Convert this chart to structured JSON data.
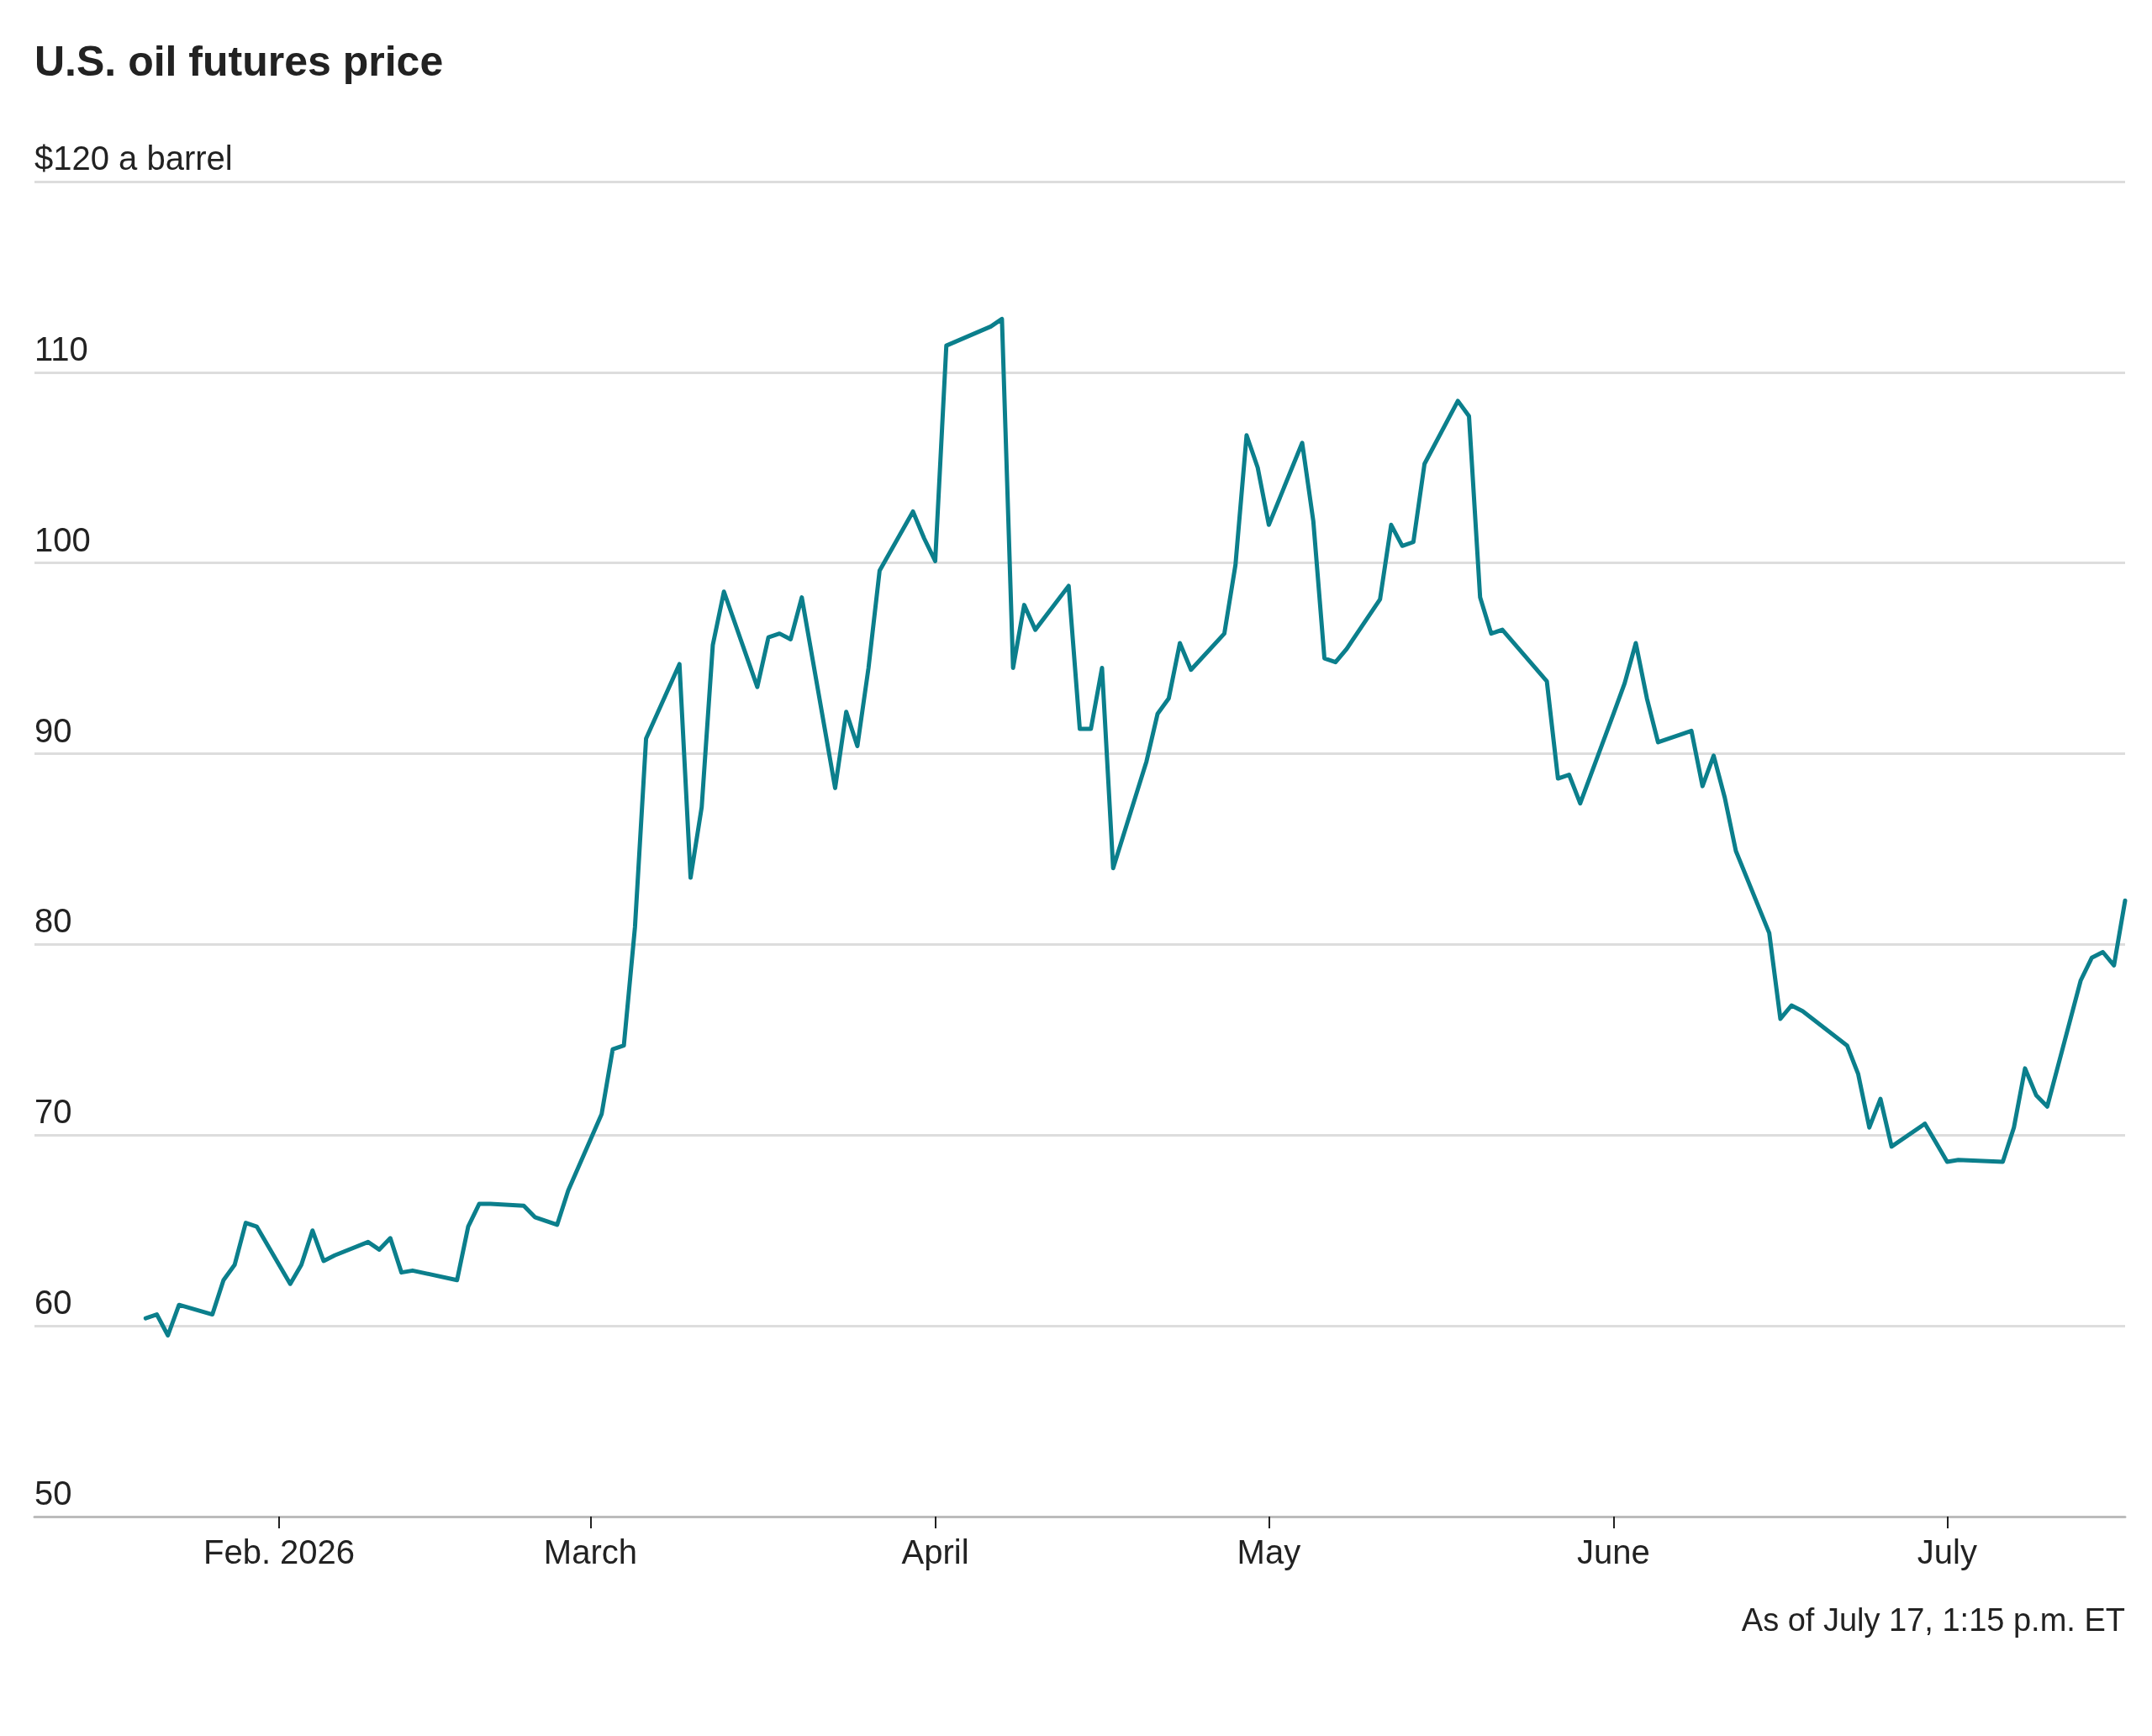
{
  "chart_data": {
    "type": "line",
    "title": "U.S. oil futures price",
    "annotations": [
      "As of July 17, 1:15 p.m. ET"
    ],
    "x": [
      "2026-01-20",
      "2026-01-21",
      "2026-01-22",
      "2026-01-23",
      "2026-01-26",
      "2026-01-27",
      "2026-01-28",
      "2026-01-29",
      "2026-01-30",
      "2026-02-02",
      "2026-02-03",
      "2026-02-04",
      "2026-02-05",
      "2026-02-06",
      "2026-02-09",
      "2026-02-10",
      "2026-02-11",
      "2026-02-12",
      "2026-02-13",
      "2026-02-17",
      "2026-02-18",
      "2026-02-19",
      "2026-02-20",
      "2026-02-23",
      "2026-02-24",
      "2026-02-25",
      "2026-02-26",
      "2026-02-27",
      "2026-03-02",
      "2026-03-03",
      "2026-03-04",
      "2026-03-05",
      "2026-03-06",
      "2026-03-09",
      "2026-03-10",
      "2026-03-11",
      "2026-03-12",
      "2026-03-13",
      "2026-03-16",
      "2026-03-17",
      "2026-03-18",
      "2026-03-19",
      "2026-03-20",
      "2026-03-23",
      "2026-03-24",
      "2026-03-25",
      "2026-03-26",
      "2026-03-27",
      "2026-03-30",
      "2026-03-31",
      "2026-04-01",
      "2026-04-02",
      "2026-04-06",
      "2026-04-07",
      "2026-04-08",
      "2026-04-09",
      "2026-04-10",
      "2026-04-13",
      "2026-04-14",
      "2026-04-15",
      "2026-04-16",
      "2026-04-17",
      "2026-04-20",
      "2026-04-21",
      "2026-04-22",
      "2026-04-23",
      "2026-04-24",
      "2026-04-27",
      "2026-04-28",
      "2026-04-29",
      "2026-04-30",
      "2026-05-01",
      "2026-05-04",
      "2026-05-05",
      "2026-05-06",
      "2026-05-07",
      "2026-05-08",
      "2026-05-11",
      "2026-05-12",
      "2026-05-13",
      "2026-05-14",
      "2026-05-15",
      "2026-05-18",
      "2026-05-19",
      "2026-05-20",
      "2026-05-21",
      "2026-05-22",
      "2026-05-26",
      "2026-05-27",
      "2026-05-28",
      "2026-05-29",
      "2026-06-01",
      "2026-06-02",
      "2026-06-03",
      "2026-06-04",
      "2026-06-05",
      "2026-06-08",
      "2026-06-09",
      "2026-06-10",
      "2026-06-11",
      "2026-06-12",
      "2026-06-15",
      "2026-06-16",
      "2026-06-17",
      "2026-06-18",
      "2026-06-22",
      "2026-06-23",
      "2026-06-24",
      "2026-06-25",
      "2026-06-26",
      "2026-06-29",
      "2026-06-30",
      "2026-07-01",
      "2026-07-02",
      "2026-07-06",
      "2026-07-07",
      "2026-07-08",
      "2026-07-09",
      "2026-07-10",
      "2026-07-13",
      "2026-07-14",
      "2026-07-15",
      "2026-07-16",
      "2026-07-17"
    ],
    "series": [
      {
        "color": "#0b7f8c",
        "values": [
          60.4,
          60.6,
          59.5,
          61.1,
          60.6,
          62.4,
          63.2,
          65.4,
          65.2,
          62.2,
          63.2,
          65.0,
          63.4,
          63.7,
          64.4,
          64.0,
          64.6,
          62.8,
          62.9,
          62.4,
          65.2,
          66.4,
          66.4,
          66.3,
          65.7,
          65.5,
          65.3,
          67.1,
          71.1,
          74.5,
          74.7,
          80.9,
          90.8,
          94.7,
          83.5,
          87.2,
          95.7,
          98.5,
          93.5,
          96.1,
          96.3,
          96.0,
          98.2,
          88.2,
          92.2,
          90.4,
          94.5,
          99.6,
          102.7,
          101.3,
          100.1,
          111.4,
          112.4,
          112.8,
          94.5,
          97.8,
          96.5,
          98.8,
          91.3,
          91.3,
          94.5,
          84.0,
          89.6,
          92.1,
          92.9,
          95.8,
          94.4,
          96.3,
          99.9,
          106.7,
          105.0,
          102.0,
          106.3,
          102.2,
          95.0,
          94.8,
          95.5,
          98.1,
          102.0,
          100.9,
          101.1,
          105.2,
          108.5,
          107.7,
          98.2,
          96.3,
          96.5,
          93.8,
          88.7,
          88.9,
          87.4,
          92.1,
          93.7,
          95.8,
          92.9,
          90.6,
          91.2,
          88.3,
          89.9,
          87.7,
          84.9,
          80.6,
          76.1,
          76.8,
          76.5,
          74.7,
          73.2,
          70.4,
          71.9,
          69.4,
          70.6,
          69.6,
          68.6,
          68.7,
          68.6,
          70.4,
          73.5,
          72.1,
          71.5,
          78.1,
          79.3,
          79.6,
          78.9,
          82.3
        ]
      }
    ],
    "xlim": [
      "2026-01-10",
      "2026-07-17"
    ],
    "xticks": [
      {
        "value": "2026-02-01",
        "label": "Feb. 2026"
      },
      {
        "value": "2026-03-01",
        "label": "March"
      },
      {
        "value": "2026-04-01",
        "label": "April"
      },
      {
        "value": "2026-05-01",
        "label": "May"
      },
      {
        "value": "2026-06-01",
        "label": "June"
      },
      {
        "value": "2026-07-01",
        "label": "July"
      }
    ],
    "ylim": [
      50,
      120
    ],
    "yticks": [
      50,
      60,
      70,
      80,
      90,
      100,
      110,
      {
        "value": 120,
        "label": "$120 a barrel"
      }
    ],
    "grid": "y",
    "marker": "none",
    "line_style": "solid"
  }
}
